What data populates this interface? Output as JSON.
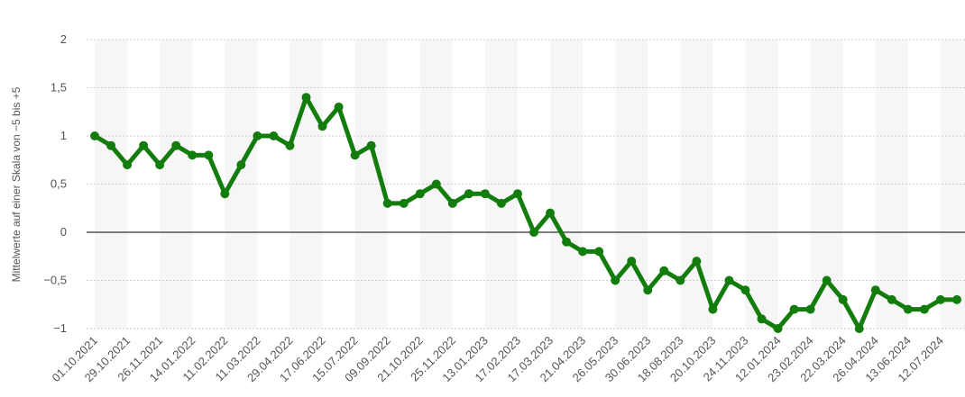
{
  "chart_data": {
    "type": "line",
    "y_label": "Mittelwerte auf einer Skala von −5 bis +5",
    "categories": [
      "01.10.2021",
      null,
      "29.10.2021",
      null,
      "26.11.2021",
      null,
      "14.01.2022",
      null,
      "11.02.2022",
      null,
      "11.03.2022",
      null,
      "29.04.2022",
      null,
      "17.06.2022",
      null,
      "15.07.2022",
      null,
      "09.09.2022",
      null,
      "21.10.2022",
      null,
      "25.11.2022",
      null,
      "13.01.2023",
      null,
      "17.02.2023",
      null,
      "17.03.2023",
      null,
      "21.04.2023",
      null,
      "26.05.2023",
      null,
      "30.06.2023",
      null,
      "18.08.2023",
      null,
      "20.10.2023",
      null,
      "24.11.2023",
      null,
      "12.01.2024",
      null,
      "23.02.2024",
      null,
      "22.03.2024",
      null,
      "26.04.2024",
      null,
      "13.06.2024",
      null,
      "12.07.2024",
      null
    ],
    "series": [
      {
        "color": "#127c0c",
        "values": [
          1.0,
          0.9,
          0.7,
          0.9,
          0.7,
          0.9,
          0.8,
          0.8,
          0.4,
          0.7,
          1.0,
          1.0,
          0.9,
          1.4,
          1.1,
          1.3,
          0.8,
          0.9,
          0.3,
          0.3,
          0.4,
          0.5,
          0.3,
          0.4,
          0.4,
          0.3,
          0.4,
          0.0,
          0.2,
          -0.1,
          -0.2,
          -0.2,
          -0.5,
          -0.3,
          -0.6,
          -0.4,
          -0.5,
          -0.3,
          -0.8,
          -0.5,
          -0.6,
          -0.9,
          -1.0,
          -0.8,
          -0.8,
          -0.5,
          -0.7,
          -1.0,
          -0.6,
          -0.7,
          -0.8,
          -0.8,
          -0.7,
          -0.7
        ]
      }
    ],
    "ylim": [
      -1,
      2
    ],
    "yticks": [
      {
        "value": -1,
        "label": "−1"
      },
      {
        "value": -0.5,
        "label": "−0,5"
      },
      0,
      {
        "value": 0.5,
        "label": "0,5"
      },
      1,
      {
        "value": 1.5,
        "label": "1,5"
      },
      2
    ],
    "grid": true
  }
}
